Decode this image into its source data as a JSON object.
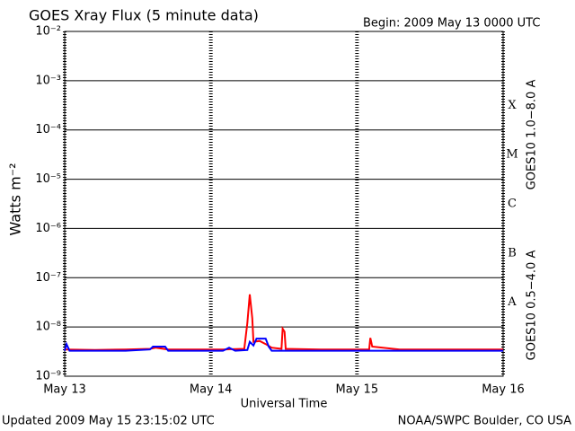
{
  "chart_data": {
    "type": "line",
    "title": "GOES Xray Flux (5 minute data)",
    "subtitle": "Begin:  2009 May 13 0000 UTC",
    "xlabel": "Universal Time",
    "ylabel": "Watts m⁻²",
    "footer_left": "Updated 2009 May 15 23:15:02 UTC",
    "footer_right": "NOAA/SWPC Boulder, CO USA",
    "log_y": true,
    "grid": true,
    "xlim": [
      0,
      72
    ],
    "xticks": [
      {
        "value": 0,
        "label": "May 13"
      },
      {
        "value": 24,
        "label": "May 14"
      },
      {
        "value": 48,
        "label": "May 15"
      },
      {
        "value": 72,
        "label": "May 16"
      }
    ],
    "ylim": [
      1e-09,
      0.01
    ],
    "yticks": [
      {
        "value": 1e-09,
        "label": "10⁻⁹"
      },
      {
        "value": 1e-08,
        "label": "10⁻⁸"
      },
      {
        "value": 1e-07,
        "label": "10⁻⁷"
      },
      {
        "value": 1e-06,
        "label": "10⁻⁶"
      },
      {
        "value": 1e-05,
        "label": "10⁻⁵"
      },
      {
        "value": 0.0001,
        "label": "10⁻⁴"
      },
      {
        "value": 0.001,
        "label": "10⁻³"
      },
      {
        "value": 0.01,
        "label": "10⁻²"
      }
    ],
    "flare_classes": [
      {
        "label": "A",
        "lower": 1e-08
      },
      {
        "label": "B",
        "lower": 1e-07
      },
      {
        "label": "C",
        "lower": 1e-06
      },
      {
        "label": "M",
        "lower": 1e-05
      },
      {
        "label": "X",
        "lower": 0.0001
      }
    ],
    "series": [
      {
        "name": "GOES10 1.0−8.0 A",
        "color": "#ff0000",
        "x": [
          0,
          5,
          10,
          14,
          15,
          17,
          22,
          26,
          29.5,
          30,
          30.4,
          30.8,
          31,
          32,
          33,
          34,
          35.6,
          35.8,
          36.1,
          36.3,
          42,
          50,
          50.2,
          50.5,
          55,
          65,
          72
        ],
        "values": [
          3.5e-09,
          3.4e-09,
          3.5e-09,
          3.6e-09,
          3.8e-09,
          3.5e-09,
          3.5e-09,
          3.5e-09,
          3.6e-09,
          1.2e-08,
          4.6e-08,
          1.5e-08,
          5e-09,
          5.2e-09,
          4.5e-09,
          3.8e-09,
          3.6e-09,
          9.2e-09,
          8e-09,
          3.6e-09,
          3.5e-09,
          3.5e-09,
          6e-09,
          4e-09,
          3.5e-09,
          3.5e-09,
          3.5e-09
        ]
      },
      {
        "name": "GOES10 0.5−4.0 A",
        "color": "#0000ff",
        "x": [
          0,
          0.3,
          0.8,
          10,
          14,
          14.5,
          16.5,
          17,
          26,
          27,
          28,
          30,
          30.4,
          31,
          31.5,
          33,
          33.5,
          34,
          72
        ],
        "values": [
          3.3e-09,
          4.5e-09,
          3.3e-09,
          3.3e-09,
          3.5e-09,
          4e-09,
          4e-09,
          3.3e-09,
          3.3e-09,
          3.8e-09,
          3.3e-09,
          3.4e-09,
          5e-09,
          4.2e-09,
          5.8e-09,
          5.8e-09,
          4e-09,
          3.3e-09,
          3.3e-09
        ]
      }
    ]
  }
}
